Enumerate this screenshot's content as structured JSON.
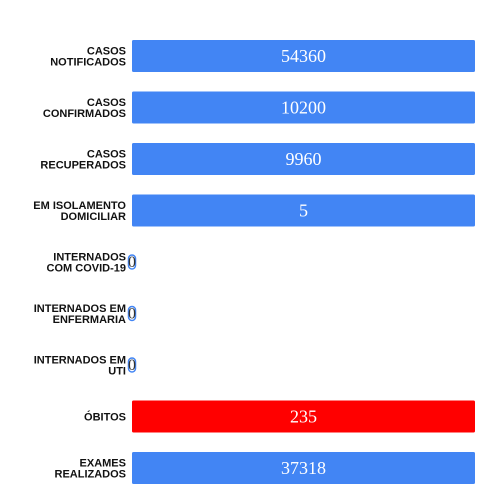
{
  "chart_data": {
    "type": "bar",
    "orientation": "horizontal",
    "categories": [
      [
        "CASOS",
        "NOTIFICADOS"
      ],
      [
        "CASOS",
        "CONFIRMADOS"
      ],
      [
        "CASOS",
        "RECUPERADOS"
      ],
      [
        "EM ISOLAMENTO",
        "DOMICILIAR"
      ],
      [
        "INTERNADOS",
        "COM COVID-19"
      ],
      [
        "INTERNADOS EM",
        "ENFERMARIA"
      ],
      [
        "INTERNADOS EM",
        "UTI"
      ],
      [
        "ÓBITOS"
      ],
      [
        "EXAMES",
        "REALIZADOS"
      ]
    ],
    "values": [
      54360,
      10200,
      9960,
      5,
      0,
      0,
      0,
      235,
      37318
    ],
    "colors": [
      "#4285f4",
      "#4285f4",
      "#4285f4",
      "#4285f4",
      "#4285f4",
      "#4285f4",
      "#4285f4",
      "#ff0000",
      "#4285f4"
    ],
    "bar_fills_full_width": true,
    "title": "",
    "xlabel": "",
    "ylabel": "",
    "grid": false,
    "legend": "none"
  }
}
